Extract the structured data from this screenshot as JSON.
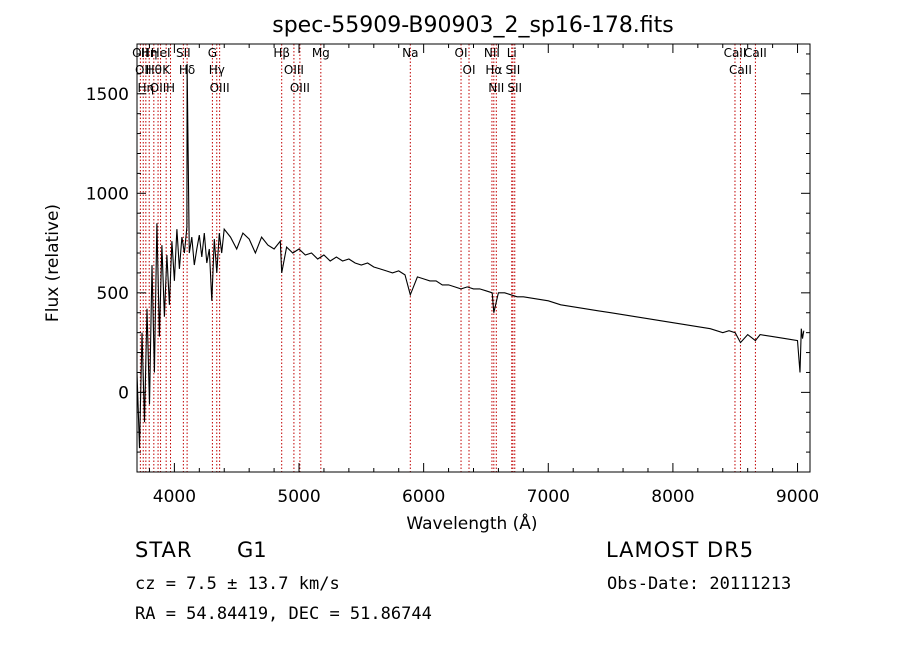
{
  "chart_data": {
    "type": "line",
    "title": "spec-55909-B90903_2_sp16-178.fits",
    "xlabel": "Wavelength (Å)",
    "ylabel": "Flux (relative)",
    "xlim": [
      3700,
      9100
    ],
    "ylim": [
      -400,
      1750
    ],
    "xticks": [
      4000,
      5000,
      6000,
      7000,
      8000,
      9000
    ],
    "yticks": [
      0,
      500,
      1000,
      1500
    ],
    "grid": false,
    "series": [
      {
        "x": [
          3700,
          3720,
          3740,
          3760,
          3780,
          3800,
          3820,
          3840,
          3860,
          3880,
          3900,
          3920,
          3940,
          3960,
          3980,
          4000,
          4020,
          4040,
          4060,
          4080,
          4100,
          4102,
          4120,
          4140,
          4160,
          4180,
          4200,
          4220,
          4240,
          4260,
          4280,
          4300,
          4320,
          4340,
          4360,
          4380,
          4400,
          4450,
          4500,
          4550,
          4600,
          4650,
          4700,
          4750,
          4800,
          4850,
          4861,
          4900,
          4950,
          5000,
          5050,
          5100,
          5150,
          5200,
          5250,
          5300,
          5350,
          5400,
          5450,
          5500,
          5550,
          5600,
          5650,
          5700,
          5750,
          5800,
          5850,
          5893,
          5950,
          6000,
          6050,
          6100,
          6150,
          6200,
          6250,
          6300,
          6350,
          6400,
          6450,
          6500,
          6550,
          6563,
          6600,
          6650,
          6700,
          6750,
          6800,
          6900,
          7000,
          7100,
          7200,
          7300,
          7400,
          7500,
          7600,
          7700,
          7800,
          7900,
          8000,
          8100,
          8200,
          8300,
          8400,
          8450,
          8500,
          8542,
          8600,
          8662,
          8700,
          8800,
          8900,
          9000,
          9020,
          9030,
          9040,
          9050
        ],
        "y": [
          100,
          -280,
          300,
          -150,
          420,
          -60,
          640,
          100,
          850,
          280,
          740,
          380,
          690,
          440,
          760,
          560,
          820,
          620,
          780,
          700,
          830,
          1650,
          700,
          780,
          640,
          720,
          790,
          680,
          800,
          650,
          720,
          460,
          770,
          600,
          800,
          700,
          820,
          780,
          720,
          800,
          770,
          700,
          780,
          740,
          720,
          760,
          600,
          730,
          700,
          720,
          690,
          700,
          670,
          690,
          660,
          680,
          660,
          670,
          650,
          640,
          650,
          630,
          620,
          610,
          600,
          610,
          590,
          490,
          580,
          570,
          560,
          560,
          540,
          540,
          530,
          520,
          530,
          520,
          520,
          510,
          500,
          400,
          500,
          500,
          490,
          480,
          480,
          470,
          460,
          440,
          430,
          420,
          410,
          400,
          390,
          380,
          370,
          360,
          350,
          340,
          330,
          320,
          300,
          310,
          300,
          250,
          290,
          260,
          290,
          280,
          270,
          260,
          100,
          320,
          270,
          310
        ]
      }
    ],
    "lines": [
      {
        "wl": 3727,
        "label": "OII"
      },
      {
        "wl": 3750,
        "label": "OII"
      },
      {
        "wl": 3771,
        "label": "Hη"
      },
      {
        "wl": 3798,
        "label": "Hη"
      },
      {
        "wl": 3835,
        "label": "Hθ"
      },
      {
        "wl": 3869,
        "label": "OII"
      },
      {
        "wl": 3889,
        "label": "HeI"
      },
      {
        "wl": 3934,
        "label": "K"
      },
      {
        "wl": 3969,
        "label": "H"
      },
      {
        "wl": 4072,
        "label": "SII"
      },
      {
        "wl": 4102,
        "label": "Hδ"
      },
      {
        "wl": 4305,
        "label": "G"
      },
      {
        "wl": 4340,
        "label": "Hγ"
      },
      {
        "wl": 4363,
        "label": "OIII"
      },
      {
        "wl": 4861,
        "label": "Hβ"
      },
      {
        "wl": 4959,
        "label": "OIII"
      },
      {
        "wl": 5007,
        "label": "OIII"
      },
      {
        "wl": 5175,
        "label": "Mg"
      },
      {
        "wl": 5893,
        "label": "Na"
      },
      {
        "wl": 6300,
        "label": "OI"
      },
      {
        "wl": 6364,
        "label": "OI"
      },
      {
        "wl": 6548,
        "label": "NII"
      },
      {
        "wl": 6563,
        "label": "Hα"
      },
      {
        "wl": 6583,
        "label": "NII"
      },
      {
        "wl": 6707,
        "label": "Li"
      },
      {
        "wl": 6716,
        "label": "SII"
      },
      {
        "wl": 6731,
        "label": "SII"
      },
      {
        "wl": 8498,
        "label": "CaII"
      },
      {
        "wl": 8542,
        "label": "CaII"
      },
      {
        "wl": 8662,
        "label": "CaII"
      }
    ]
  },
  "info": {
    "object_class": "STAR",
    "subclass": "G1",
    "survey": "LAMOST DR5",
    "cz": "cz = 7.5 ± 13.7 km/s",
    "obs_date": "Obs-Date: 20111213",
    "radec": "RA =  54.84419, DEC =  51.86744"
  },
  "colors": {
    "spectrum": "#000000",
    "line_markers": "#c00000",
    "axes": "#000000"
  }
}
